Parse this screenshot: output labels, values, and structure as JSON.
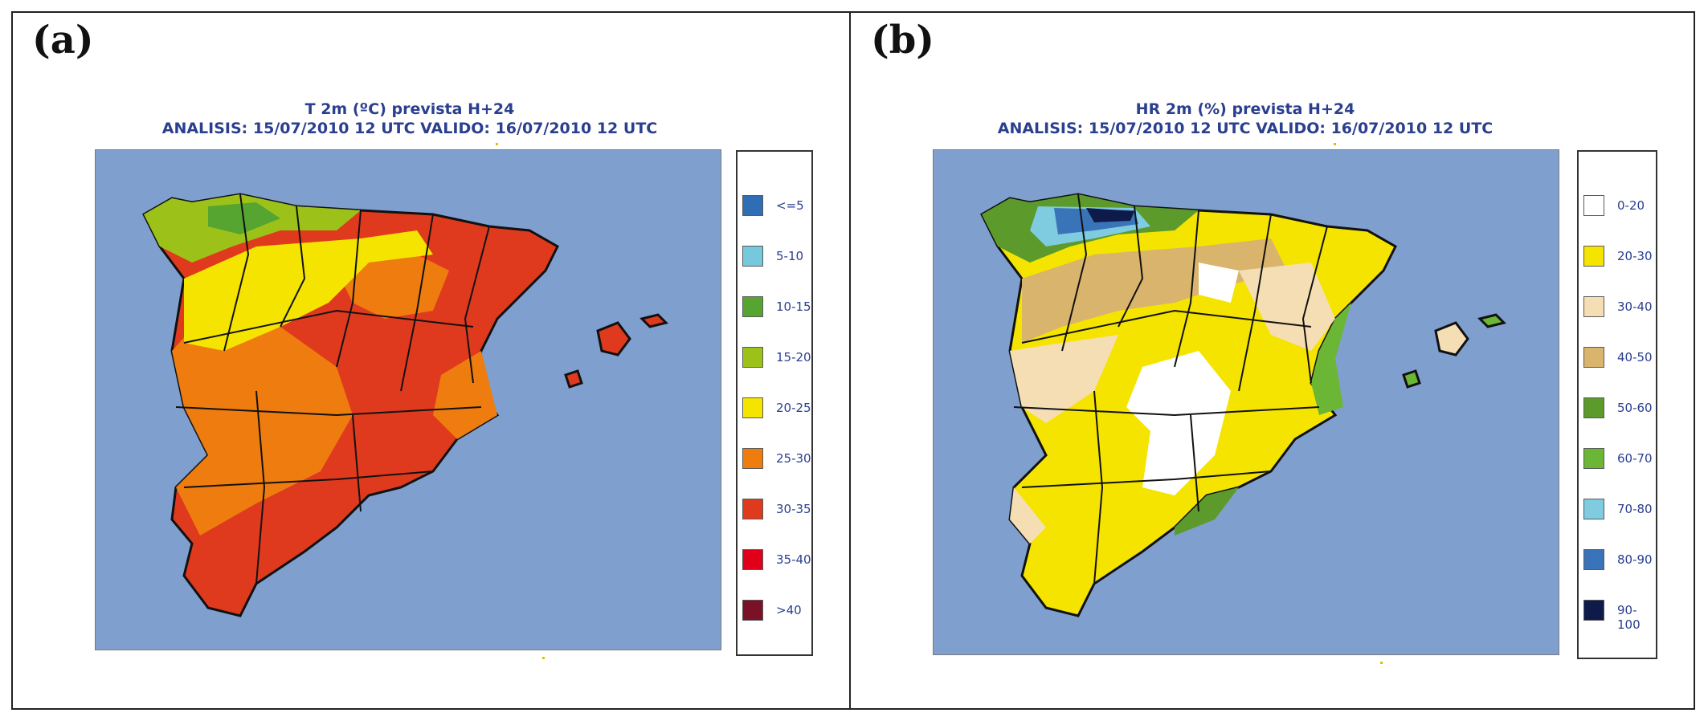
{
  "panels": [
    {
      "label": "(a)",
      "title_line1": "T 2m (ºC) prevista H+24",
      "title_line2": "ANALISIS: 15/07/2010 12 UTC  VALIDO: 16/07/2010 12 UTC",
      "legend": [
        {
          "label": "<=5",
          "color": "#2f6db5"
        },
        {
          "label": "5-10",
          "color": "#74c9dc"
        },
        {
          "label": "10-15",
          "color": "#55a530"
        },
        {
          "label": "15-20",
          "color": "#9cc21a"
        },
        {
          "label": "20-25",
          "color": "#f5e400"
        },
        {
          "label": "25-30",
          "color": "#ee7c0f"
        },
        {
          "label": "30-35",
          "color": "#df3a1e"
        },
        {
          "label": "35-40",
          "color": "#e10019"
        },
        {
          "label": ">40",
          "color": "#7a1126"
        }
      ]
    },
    {
      "label": "(b)",
      "title_line1": "HR 2m (%) prevista H+24",
      "title_line2": "ANALISIS: 15/07/2010 12 UTC  VALIDO: 16/07/2010 12 UTC",
      "legend": [
        {
          "label": "0-20",
          "color": "#ffffff"
        },
        {
          "label": "20-30",
          "color": "#f5e400"
        },
        {
          "label": "30-40",
          "color": "#f5deb3"
        },
        {
          "label": "40-50",
          "color": "#d9b46d"
        },
        {
          "label": "50-60",
          "color": "#5b9a2b"
        },
        {
          "label": "60-70",
          "color": "#6bb634"
        },
        {
          "label": "70-80",
          "color": "#7fcbe0"
        },
        {
          "label": "80-90",
          "color": "#3a74b8"
        },
        {
          "label": "90-100",
          "color": "#0d1a4a"
        }
      ]
    }
  ],
  "colors": {
    "sea": "#7f9fcf",
    "border": "#111111",
    "title_text": "#2a3f8f"
  }
}
